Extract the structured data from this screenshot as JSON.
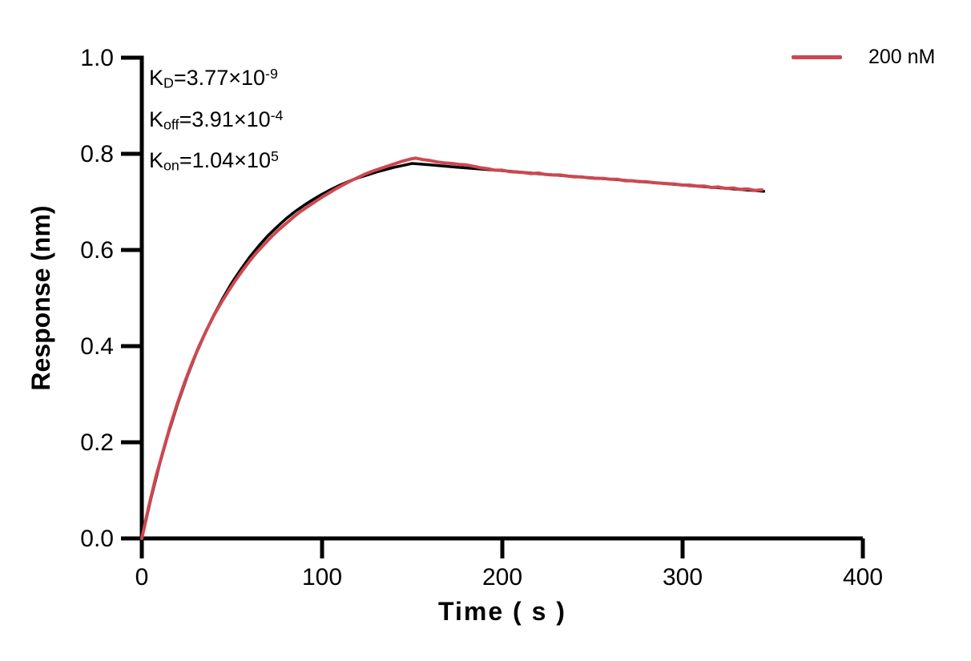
{
  "chart_data": {
    "type": "line",
    "title": "",
    "xlabel": "Time ( s )",
    "ylabel": "Response (nm)",
    "xlim": [
      0,
      400
    ],
    "ylim": [
      0.0,
      1.0
    ],
    "grid": false,
    "legend_position": "top-right",
    "x_ticks": [
      {
        "v": 0,
        "label": "0"
      },
      {
        "v": 100,
        "label": "100"
      },
      {
        "v": 200,
        "label": "200"
      },
      {
        "v": 300,
        "label": "300"
      },
      {
        "v": 400,
        "label": "400"
      }
    ],
    "y_ticks": [
      {
        "v": 0.0,
        "label": "0.0"
      },
      {
        "v": 0.2,
        "label": "0.2"
      },
      {
        "v": 0.4,
        "label": "0.4"
      },
      {
        "v": 0.6,
        "label": "0.6"
      },
      {
        "v": 0.8,
        "label": "0.8"
      },
      {
        "v": 1.0,
        "label": "1.0"
      }
    ],
    "annotations": [
      {
        "base": "K",
        "sub": "D",
        "mid": "=3.77×10",
        "sup": "-9"
      },
      {
        "base": "K",
        "sub": "off",
        "mid": "=3.91×10",
        "sup": "-4"
      },
      {
        "base": "K",
        "sub": "on",
        "mid": "=1.04×10",
        "sup": "5"
      }
    ],
    "series": [
      {
        "name": "fit",
        "role": "fit",
        "color": "#000000",
        "width": 3.5,
        "points": [
          [
            0,
            0
          ],
          [
            5,
            0.082
          ],
          [
            10,
            0.156
          ],
          [
            15,
            0.222
          ],
          [
            20,
            0.281
          ],
          [
            25,
            0.335
          ],
          [
            30,
            0.383
          ],
          [
            35,
            0.426
          ],
          [
            40,
            0.465
          ],
          [
            45,
            0.5
          ],
          [
            50,
            0.532
          ],
          [
            55,
            0.56
          ],
          [
            60,
            0.586
          ],
          [
            65,
            0.609
          ],
          [
            70,
            0.63
          ],
          [
            75,
            0.648
          ],
          [
            80,
            0.665
          ],
          [
            85,
            0.68
          ],
          [
            90,
            0.693
          ],
          [
            95,
            0.705
          ],
          [
            100,
            0.716
          ],
          [
            105,
            0.726
          ],
          [
            110,
            0.735
          ],
          [
            115,
            0.743
          ],
          [
            120,
            0.75
          ],
          [
            125,
            0.756
          ],
          [
            130,
            0.762
          ],
          [
            135,
            0.767
          ],
          [
            140,
            0.772
          ],
          [
            145,
            0.776
          ],
          [
            150,
            0.78
          ],
          [
            160,
            0.777
          ],
          [
            175,
            0.772
          ],
          [
            200,
            0.765
          ],
          [
            225,
            0.757
          ],
          [
            250,
            0.75
          ],
          [
            275,
            0.743
          ],
          [
            300,
            0.735
          ],
          [
            325,
            0.728
          ],
          [
            345,
            0.722
          ]
        ]
      },
      {
        "name": "200 nM",
        "role": "data",
        "color": "#cd4850",
        "width": 4,
        "points": [
          [
            0,
            0.0
          ],
          [
            4,
            0.069
          ],
          [
            8,
            0.131
          ],
          [
            12,
            0.184
          ],
          [
            16,
            0.237
          ],
          [
            20,
            0.284
          ],
          [
            24,
            0.327
          ],
          [
            28,
            0.366
          ],
          [
            32,
            0.402
          ],
          [
            36,
            0.434
          ],
          [
            40,
            0.464
          ],
          [
            44,
            0.49
          ],
          [
            48,
            0.514
          ],
          [
            52,
            0.537
          ],
          [
            56,
            0.558
          ],
          [
            60,
            0.578
          ],
          [
            64,
            0.596
          ],
          [
            68,
            0.612
          ],
          [
            72,
            0.628
          ],
          [
            76,
            0.642
          ],
          [
            80,
            0.655
          ],
          [
            84,
            0.668
          ],
          [
            88,
            0.68
          ],
          [
            92,
            0.69
          ],
          [
            96,
            0.7
          ],
          [
            100,
            0.71
          ],
          [
            104,
            0.719
          ],
          [
            108,
            0.728
          ],
          [
            112,
            0.736
          ],
          [
            116,
            0.744
          ],
          [
            120,
            0.751
          ],
          [
            124,
            0.758
          ],
          [
            128,
            0.764
          ],
          [
            132,
            0.769
          ],
          [
            136,
            0.774
          ],
          [
            140,
            0.779
          ],
          [
            144,
            0.784
          ],
          [
            148,
            0.788
          ],
          [
            150,
            0.79
          ],
          [
            152,
            0.791
          ],
          [
            156,
            0.788
          ],
          [
            160,
            0.786
          ],
          [
            164,
            0.783
          ],
          [
            168,
            0.781
          ],
          [
            172,
            0.78
          ],
          [
            176,
            0.778
          ],
          [
            180,
            0.777
          ],
          [
            184,
            0.774
          ],
          [
            188,
            0.771
          ],
          [
            192,
            0.769
          ],
          [
            196,
            0.766
          ],
          [
            200,
            0.766
          ],
          [
            204,
            0.763
          ],
          [
            208,
            0.762
          ],
          [
            212,
            0.761
          ],
          [
            216,
            0.759
          ],
          [
            220,
            0.76
          ],
          [
            224,
            0.757
          ],
          [
            228,
            0.756
          ],
          [
            232,
            0.756
          ],
          [
            236,
            0.754
          ],
          [
            240,
            0.752
          ],
          [
            244,
            0.752
          ],
          [
            248,
            0.75
          ],
          [
            252,
            0.749
          ],
          [
            256,
            0.749
          ],
          [
            260,
            0.747
          ],
          [
            264,
            0.747
          ],
          [
            268,
            0.744
          ],
          [
            272,
            0.744
          ],
          [
            276,
            0.742
          ],
          [
            280,
            0.742
          ],
          [
            284,
            0.74
          ],
          [
            288,
            0.739
          ],
          [
            292,
            0.738
          ],
          [
            296,
            0.737
          ],
          [
            300,
            0.735
          ],
          [
            304,
            0.735
          ],
          [
            308,
            0.733
          ],
          [
            312,
            0.733
          ],
          [
            316,
            0.73
          ],
          [
            320,
            0.731
          ],
          [
            324,
            0.728
          ],
          [
            328,
            0.729
          ],
          [
            332,
            0.726
          ],
          [
            336,
            0.727
          ],
          [
            340,
            0.724
          ],
          [
            344,
            0.725
          ]
        ]
      }
    ]
  }
}
